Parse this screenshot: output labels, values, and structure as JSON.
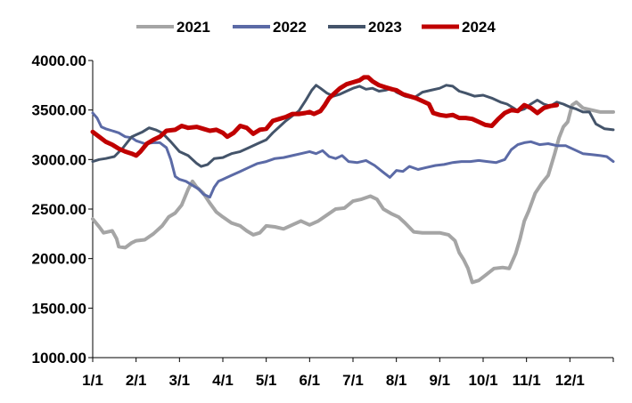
{
  "chart_data": {
    "type": "line",
    "title": "",
    "xlabel": "",
    "ylabel": "",
    "ylim": [
      1000,
      4000
    ],
    "grid": false,
    "legend_position": "top",
    "x_ticks": [
      "1/1",
      "2/1",
      "3/1",
      "4/1",
      "5/1",
      "6/1",
      "7/1",
      "8/1",
      "9/1",
      "10/1",
      "11/1",
      "12/1"
    ],
    "y_ticks": [
      "1000.00",
      "1500.00",
      "2000.00",
      "2500.00",
      "3000.00",
      "3500.00",
      "4000.00"
    ],
    "x_domain": [
      0,
      12
    ],
    "series": [
      {
        "name": "2021",
        "color": "#a5a5a5",
        "width": 4,
        "points": [
          [
            0.0,
            2400
          ],
          [
            0.15,
            2320
          ],
          [
            0.25,
            2260
          ],
          [
            0.45,
            2280
          ],
          [
            0.55,
            2200
          ],
          [
            0.6,
            2120
          ],
          [
            0.75,
            2110
          ],
          [
            0.9,
            2160
          ],
          [
            1.0,
            2180
          ],
          [
            1.2,
            2190
          ],
          [
            1.4,
            2250
          ],
          [
            1.6,
            2330
          ],
          [
            1.75,
            2420
          ],
          [
            1.9,
            2460
          ],
          [
            2.05,
            2540
          ],
          [
            2.2,
            2700
          ],
          [
            2.3,
            2780
          ],
          [
            2.4,
            2720
          ],
          [
            2.55,
            2660
          ],
          [
            2.7,
            2560
          ],
          [
            2.85,
            2470
          ],
          [
            3.0,
            2420
          ],
          [
            3.2,
            2360
          ],
          [
            3.4,
            2330
          ],
          [
            3.55,
            2280
          ],
          [
            3.7,
            2240
          ],
          [
            3.85,
            2260
          ],
          [
            4.0,
            2330
          ],
          [
            4.2,
            2320
          ],
          [
            4.4,
            2300
          ],
          [
            4.6,
            2340
          ],
          [
            4.8,
            2380
          ],
          [
            5.0,
            2340
          ],
          [
            5.2,
            2380
          ],
          [
            5.4,
            2440
          ],
          [
            5.6,
            2500
          ],
          [
            5.8,
            2510
          ],
          [
            6.0,
            2580
          ],
          [
            6.2,
            2600
          ],
          [
            6.4,
            2630
          ],
          [
            6.55,
            2600
          ],
          [
            6.7,
            2500
          ],
          [
            6.9,
            2450
          ],
          [
            7.05,
            2420
          ],
          [
            7.2,
            2360
          ],
          [
            7.4,
            2270
          ],
          [
            7.6,
            2260
          ],
          [
            7.8,
            2260
          ],
          [
            8.0,
            2260
          ],
          [
            8.2,
            2240
          ],
          [
            8.35,
            2180
          ],
          [
            8.45,
            2060
          ],
          [
            8.55,
            1990
          ],
          [
            8.65,
            1900
          ],
          [
            8.75,
            1760
          ],
          [
            8.9,
            1780
          ],
          [
            9.05,
            1830
          ],
          [
            9.25,
            1900
          ],
          [
            9.45,
            1910
          ],
          [
            9.6,
            1900
          ],
          [
            9.75,
            2050
          ],
          [
            9.85,
            2200
          ],
          [
            9.95,
            2380
          ],
          [
            10.05,
            2480
          ],
          [
            10.2,
            2660
          ],
          [
            10.35,
            2760
          ],
          [
            10.5,
            2840
          ],
          [
            10.65,
            3060
          ],
          [
            10.75,
            3220
          ],
          [
            10.85,
            3330
          ],
          [
            10.95,
            3380
          ],
          [
            11.05,
            3550
          ],
          [
            11.15,
            3580
          ],
          [
            11.3,
            3520
          ],
          [
            11.5,
            3500
          ],
          [
            11.7,
            3480
          ],
          [
            12.0,
            3480
          ]
        ]
      },
      {
        "name": "2022",
        "color": "#5b6aa6",
        "width": 3,
        "points": [
          [
            0.0,
            3470
          ],
          [
            0.1,
            3420
          ],
          [
            0.2,
            3330
          ],
          [
            0.3,
            3310
          ],
          [
            0.45,
            3290
          ],
          [
            0.6,
            3270
          ],
          [
            0.75,
            3230
          ],
          [
            0.9,
            3220
          ],
          [
            1.0,
            3190
          ],
          [
            1.2,
            3160
          ],
          [
            1.4,
            3170
          ],
          [
            1.55,
            3170
          ],
          [
            1.7,
            3120
          ],
          [
            1.8,
            3000
          ],
          [
            1.9,
            2830
          ],
          [
            2.0,
            2800
          ],
          [
            2.15,
            2780
          ],
          [
            2.3,
            2740
          ],
          [
            2.45,
            2700
          ],
          [
            2.55,
            2650
          ],
          [
            2.7,
            2620
          ],
          [
            2.8,
            2720
          ],
          [
            2.9,
            2780
          ],
          [
            3.0,
            2800
          ],
          [
            3.2,
            2840
          ],
          [
            3.4,
            2880
          ],
          [
            3.6,
            2920
          ],
          [
            3.8,
            2960
          ],
          [
            4.0,
            2980
          ],
          [
            4.2,
            3010
          ],
          [
            4.4,
            3020
          ],
          [
            4.6,
            3040
          ],
          [
            4.8,
            3060
          ],
          [
            5.0,
            3080
          ],
          [
            5.15,
            3060
          ],
          [
            5.3,
            3090
          ],
          [
            5.45,
            3030
          ],
          [
            5.6,
            3010
          ],
          [
            5.75,
            3040
          ],
          [
            5.9,
            2980
          ],
          [
            6.1,
            2970
          ],
          [
            6.3,
            2990
          ],
          [
            6.5,
            2940
          ],
          [
            6.7,
            2870
          ],
          [
            6.85,
            2820
          ],
          [
            7.0,
            2890
          ],
          [
            7.15,
            2880
          ],
          [
            7.3,
            2930
          ],
          [
            7.5,
            2900
          ],
          [
            7.7,
            2920
          ],
          [
            7.9,
            2940
          ],
          [
            8.1,
            2950
          ],
          [
            8.3,
            2970
          ],
          [
            8.5,
            2980
          ],
          [
            8.7,
            2980
          ],
          [
            8.9,
            2990
          ],
          [
            9.1,
            2980
          ],
          [
            9.3,
            2970
          ],
          [
            9.5,
            3000
          ],
          [
            9.65,
            3100
          ],
          [
            9.8,
            3150
          ],
          [
            9.95,
            3170
          ],
          [
            10.1,
            3180
          ],
          [
            10.3,
            3150
          ],
          [
            10.5,
            3160
          ],
          [
            10.7,
            3140
          ],
          [
            10.9,
            3140
          ],
          [
            11.1,
            3100
          ],
          [
            11.3,
            3060
          ],
          [
            11.5,
            3050
          ],
          [
            11.7,
            3040
          ],
          [
            11.85,
            3030
          ],
          [
            12.0,
            2980
          ]
        ]
      },
      {
        "name": "2023",
        "color": "#44546a",
        "width": 3,
        "points": [
          [
            0.0,
            2980
          ],
          [
            0.15,
            3000
          ],
          [
            0.3,
            3010
          ],
          [
            0.5,
            3030
          ],
          [
            0.7,
            3120
          ],
          [
            0.9,
            3230
          ],
          [
            1.0,
            3250
          ],
          [
            1.15,
            3280
          ],
          [
            1.3,
            3320
          ],
          [
            1.45,
            3300
          ],
          [
            1.6,
            3270
          ],
          [
            1.8,
            3180
          ],
          [
            2.0,
            3080
          ],
          [
            2.2,
            3040
          ],
          [
            2.4,
            2960
          ],
          [
            2.5,
            2930
          ],
          [
            2.65,
            2950
          ],
          [
            2.8,
            3010
          ],
          [
            3.0,
            3020
          ],
          [
            3.2,
            3060
          ],
          [
            3.4,
            3080
          ],
          [
            3.6,
            3120
          ],
          [
            3.8,
            3160
          ],
          [
            4.0,
            3200
          ],
          [
            4.15,
            3270
          ],
          [
            4.3,
            3330
          ],
          [
            4.45,
            3390
          ],
          [
            4.6,
            3440
          ],
          [
            4.75,
            3490
          ],
          [
            4.9,
            3590
          ],
          [
            5.05,
            3700
          ],
          [
            5.15,
            3750
          ],
          [
            5.25,
            3720
          ],
          [
            5.4,
            3670
          ],
          [
            5.55,
            3640
          ],
          [
            5.7,
            3660
          ],
          [
            5.85,
            3690
          ],
          [
            6.0,
            3720
          ],
          [
            6.15,
            3740
          ],
          [
            6.3,
            3710
          ],
          [
            6.45,
            3720
          ],
          [
            6.6,
            3690
          ],
          [
            6.75,
            3700
          ],
          [
            6.9,
            3720
          ],
          [
            7.0,
            3680
          ],
          [
            7.2,
            3640
          ],
          [
            7.4,
            3620
          ],
          [
            7.6,
            3680
          ],
          [
            7.8,
            3700
          ],
          [
            8.0,
            3720
          ],
          [
            8.15,
            3750
          ],
          [
            8.3,
            3740
          ],
          [
            8.45,
            3690
          ],
          [
            8.6,
            3670
          ],
          [
            8.8,
            3640
          ],
          [
            9.0,
            3650
          ],
          [
            9.2,
            3620
          ],
          [
            9.4,
            3580
          ],
          [
            9.55,
            3560
          ],
          [
            9.7,
            3520
          ],
          [
            9.8,
            3490
          ],
          [
            9.95,
            3510
          ],
          [
            10.1,
            3560
          ],
          [
            10.25,
            3600
          ],
          [
            10.4,
            3560
          ],
          [
            10.55,
            3540
          ],
          [
            10.7,
            3580
          ],
          [
            10.85,
            3560
          ],
          [
            11.0,
            3530
          ],
          [
            11.15,
            3510
          ],
          [
            11.3,
            3480
          ],
          [
            11.45,
            3480
          ],
          [
            11.6,
            3360
          ],
          [
            11.8,
            3310
          ],
          [
            12.0,
            3300
          ]
        ]
      },
      {
        "name": "2024",
        "color": "#c00000",
        "width": 5,
        "points": [
          [
            0.0,
            3280
          ],
          [
            0.15,
            3230
          ],
          [
            0.3,
            3180
          ],
          [
            0.45,
            3150
          ],
          [
            0.6,
            3110
          ],
          [
            0.75,
            3080
          ],
          [
            0.9,
            3060
          ],
          [
            1.0,
            3040
          ],
          [
            1.1,
            3080
          ],
          [
            1.25,
            3160
          ],
          [
            1.4,
            3200
          ],
          [
            1.55,
            3230
          ],
          [
            1.7,
            3290
          ],
          [
            1.9,
            3300
          ],
          [
            2.05,
            3340
          ],
          [
            2.2,
            3320
          ],
          [
            2.4,
            3330
          ],
          [
            2.55,
            3310
          ],
          [
            2.7,
            3290
          ],
          [
            2.85,
            3300
          ],
          [
            3.0,
            3270
          ],
          [
            3.1,
            3230
          ],
          [
            3.25,
            3270
          ],
          [
            3.4,
            3340
          ],
          [
            3.55,
            3320
          ],
          [
            3.7,
            3260
          ],
          [
            3.85,
            3300
          ],
          [
            4.0,
            3310
          ],
          [
            4.15,
            3390
          ],
          [
            4.3,
            3410
          ],
          [
            4.45,
            3430
          ],
          [
            4.6,
            3460
          ],
          [
            4.75,
            3460
          ],
          [
            4.9,
            3470
          ],
          [
            5.0,
            3480
          ],
          [
            5.1,
            3460
          ],
          [
            5.25,
            3490
          ],
          [
            5.35,
            3550
          ],
          [
            5.45,
            3620
          ],
          [
            5.55,
            3660
          ],
          [
            5.7,
            3720
          ],
          [
            5.85,
            3760
          ],
          [
            6.0,
            3780
          ],
          [
            6.15,
            3800
          ],
          [
            6.25,
            3830
          ],
          [
            6.35,
            3830
          ],
          [
            6.45,
            3790
          ],
          [
            6.6,
            3750
          ],
          [
            6.75,
            3730
          ],
          [
            6.9,
            3710
          ],
          [
            7.0,
            3700
          ],
          [
            7.15,
            3660
          ],
          [
            7.3,
            3640
          ],
          [
            7.45,
            3620
          ],
          [
            7.6,
            3590
          ],
          [
            7.75,
            3560
          ],
          [
            7.85,
            3470
          ],
          [
            8.0,
            3450
          ],
          [
            8.15,
            3440
          ],
          [
            8.3,
            3450
          ],
          [
            8.45,
            3420
          ],
          [
            8.6,
            3420
          ],
          [
            8.75,
            3410
          ],
          [
            8.9,
            3380
          ],
          [
            9.05,
            3350
          ],
          [
            9.2,
            3340
          ],
          [
            9.35,
            3410
          ],
          [
            9.5,
            3470
          ],
          [
            9.65,
            3500
          ],
          [
            9.8,
            3490
          ],
          [
            9.95,
            3550
          ],
          [
            10.1,
            3520
          ],
          [
            10.25,
            3470
          ],
          [
            10.4,
            3520
          ],
          [
            10.55,
            3540
          ],
          [
            10.7,
            3550
          ]
        ]
      }
    ]
  }
}
